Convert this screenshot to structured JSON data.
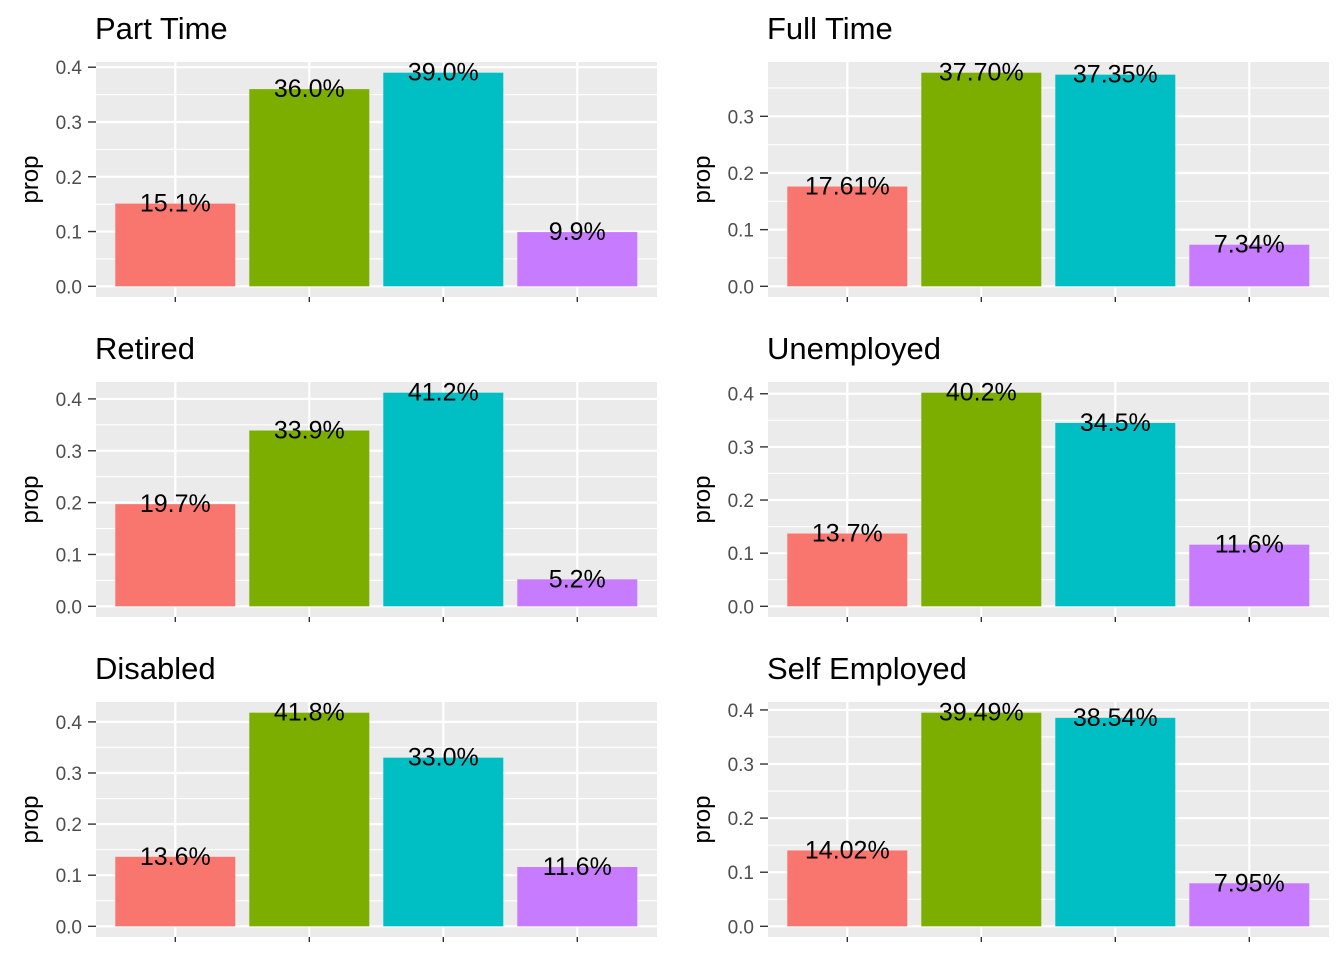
{
  "chart_data": [
    {
      "type": "bar",
      "title": "Part Time",
      "ylabel": "prop",
      "xlabel": "",
      "ylim": [
        -0.0195,
        0.4095
      ],
      "yticks": [
        "0.0",
        "0.1",
        "0.2",
        "0.3",
        "0.4"
      ],
      "values": [
        0.151,
        0.36,
        0.39,
        0.099
      ],
      "labels": [
        "15.1%",
        "36.0%",
        "39.0%",
        "9.9%"
      ],
      "colors": [
        "#F8766D",
        "#7CAE00",
        "#00BFC4",
        "#C77CFF"
      ],
      "grid": true,
      "legend": "none"
    },
    {
      "type": "bar",
      "title": "Full Time",
      "ylabel": "prop",
      "xlabel": "",
      "ylim": [
        -0.01885,
        0.39585
      ],
      "yticks": [
        "0.0",
        "0.1",
        "0.2",
        "0.3"
      ],
      "values": [
        0.1761,
        0.377,
        0.3735,
        0.0734
      ],
      "labels": [
        "17.61%",
        "37.70%",
        "37.35%",
        "7.34%"
      ],
      "colors": [
        "#F8766D",
        "#7CAE00",
        "#00BFC4",
        "#C77CFF"
      ],
      "grid": true,
      "legend": "none"
    },
    {
      "type": "bar",
      "title": "Retired",
      "ylabel": "prop",
      "xlabel": "",
      "ylim": [
        -0.0206,
        0.4326
      ],
      "yticks": [
        "0.0",
        "0.1",
        "0.2",
        "0.3",
        "0.4"
      ],
      "values": [
        0.197,
        0.339,
        0.412,
        0.052
      ],
      "labels": [
        "19.7%",
        "33.9%",
        "41.2%",
        "5.2%"
      ],
      "colors": [
        "#F8766D",
        "#7CAE00",
        "#00BFC4",
        "#C77CFF"
      ],
      "grid": true,
      "legend": "none"
    },
    {
      "type": "bar",
      "title": "Unemployed",
      "ylabel": "prop",
      "xlabel": "",
      "ylim": [
        -0.0201,
        0.4221
      ],
      "yticks": [
        "0.0",
        "0.1",
        "0.2",
        "0.3",
        "0.4"
      ],
      "values": [
        0.137,
        0.402,
        0.345,
        0.116
      ],
      "labels": [
        "13.7%",
        "40.2%",
        "34.5%",
        "11.6%"
      ],
      "colors": [
        "#F8766D",
        "#7CAE00",
        "#00BFC4",
        "#C77CFF"
      ],
      "grid": true,
      "legend": "none"
    },
    {
      "type": "bar",
      "title": "Disabled",
      "ylabel": "prop",
      "xlabel": "",
      "ylim": [
        -0.0209,
        0.4389
      ],
      "yticks": [
        "0.0",
        "0.1",
        "0.2",
        "0.3",
        "0.4"
      ],
      "values": [
        0.136,
        0.418,
        0.33,
        0.116
      ],
      "labels": [
        "13.6%",
        "41.8%",
        "33.0%",
        "11.6%"
      ],
      "colors": [
        "#F8766D",
        "#7CAE00",
        "#00BFC4",
        "#C77CFF"
      ],
      "grid": true,
      "legend": "none"
    },
    {
      "type": "bar",
      "title": "Self Employed",
      "ylabel": "prop",
      "xlabel": "",
      "ylim": [
        -0.019745,
        0.414645
      ],
      "yticks": [
        "0.0",
        "0.1",
        "0.2",
        "0.3",
        "0.4"
      ],
      "values": [
        0.1402,
        0.3949,
        0.3854,
        0.0795
      ],
      "labels": [
        "14.02%",
        "39.49%",
        "38.54%",
        "7.95%"
      ],
      "colors": [
        "#F8766D",
        "#7CAE00",
        "#00BFC4",
        "#C77CFF"
      ],
      "grid": true,
      "legend": "none"
    }
  ]
}
